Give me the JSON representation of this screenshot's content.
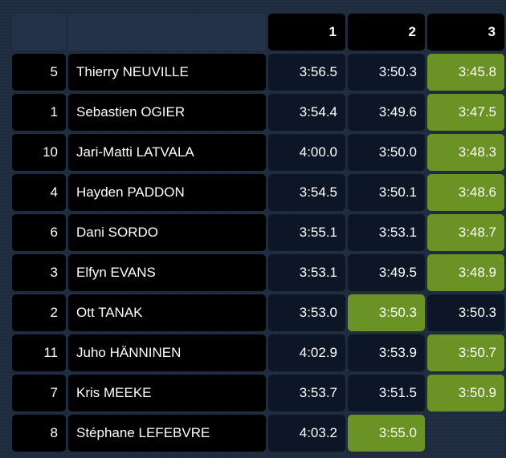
{
  "table": {
    "stages": [
      "1",
      "2",
      "3"
    ],
    "rows": [
      {
        "car": "5",
        "driver": "Thierry NEUVILLE",
        "times": [
          "3:56.5",
          "3:50.3",
          "3:45.8"
        ],
        "best": [
          false,
          false,
          true
        ]
      },
      {
        "car": "1",
        "driver": "Sebastien OGIER",
        "times": [
          "3:54.4",
          "3:49.6",
          "3:47.5"
        ],
        "best": [
          false,
          false,
          true
        ]
      },
      {
        "car": "10",
        "driver": "Jari-Matti LATVALA",
        "times": [
          "4:00.0",
          "3:50.0",
          "3:48.3"
        ],
        "best": [
          false,
          false,
          true
        ]
      },
      {
        "car": "4",
        "driver": "Hayden PADDON",
        "times": [
          "3:54.5",
          "3:50.1",
          "3:48.6"
        ],
        "best": [
          false,
          false,
          true
        ]
      },
      {
        "car": "6",
        "driver": "Dani SORDO",
        "times": [
          "3:55.1",
          "3:53.1",
          "3:48.7"
        ],
        "best": [
          false,
          false,
          true
        ]
      },
      {
        "car": "3",
        "driver": "Elfyn EVANS",
        "times": [
          "3:53.1",
          "3:49.5",
          "3:48.9"
        ],
        "best": [
          false,
          false,
          true
        ]
      },
      {
        "car": "2",
        "driver": "Ott TANAK",
        "times": [
          "3:53.0",
          "3:50.3",
          "3:50.3"
        ],
        "best": [
          false,
          true,
          false
        ]
      },
      {
        "car": "11",
        "driver": "Juho HÄNNINEN",
        "times": [
          "4:02.9",
          "3:53.9",
          "3:50.7"
        ],
        "best": [
          false,
          false,
          true
        ]
      },
      {
        "car": "7",
        "driver": "Kris MEEKE",
        "times": [
          "3:53.7",
          "3:51.5",
          "3:50.9"
        ],
        "best": [
          false,
          false,
          true
        ]
      },
      {
        "car": "8",
        "driver": "Stéphane LEFEBVRE",
        "times": [
          "4:03.2",
          "3:55.0",
          ""
        ],
        "best": [
          false,
          true,
          false
        ]
      }
    ]
  },
  "colors": {
    "best_highlight": "#6a9224",
    "time_cell": "#0d1626",
    "label_cell": "#000000",
    "background": "#1e2b3f"
  }
}
